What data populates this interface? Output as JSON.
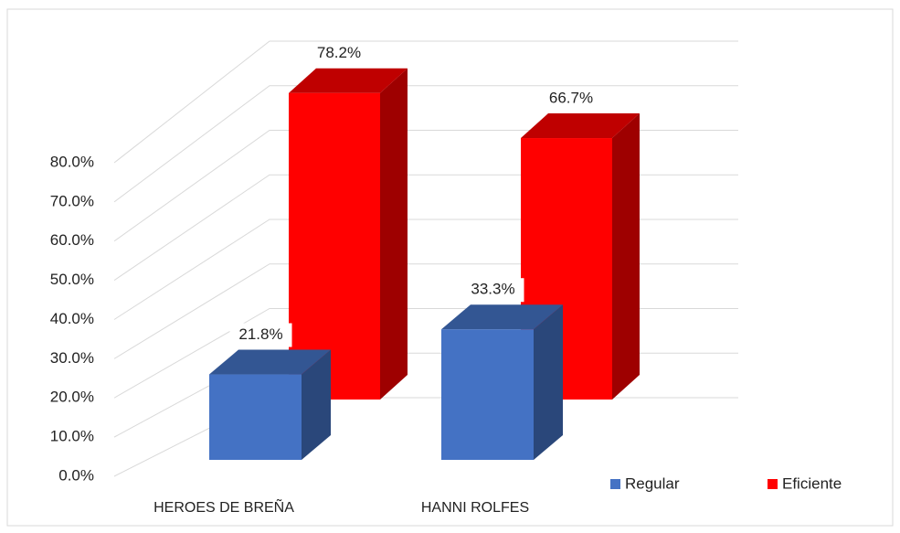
{
  "chart_data": {
    "type": "bar3d",
    "categories": [
      "HEROES DE BREÑA",
      "HANNI ROLFES"
    ],
    "series": [
      {
        "name": "Regular",
        "color": "#4472c4",
        "values": [
          21.8,
          33.3
        ],
        "value_labels": [
          "21.8%",
          "33.3%"
        ]
      },
      {
        "name": "Eficiente",
        "color": "#ff0000",
        "values": [
          78.2,
          66.7
        ],
        "value_labels": [
          "78.2%",
          "66.7%"
        ]
      }
    ],
    "ylim": [
      0,
      80
    ],
    "yticks": [
      {
        "value": 0,
        "label": "0.0%"
      },
      {
        "value": 10,
        "label": "10.0%"
      },
      {
        "value": 20,
        "label": "20.0%"
      },
      {
        "value": 30,
        "label": "30.0%"
      },
      {
        "value": 40,
        "label": "40.0%"
      },
      {
        "value": 50,
        "label": "50.0%"
      },
      {
        "value": 60,
        "label": "60.0%"
      },
      {
        "value": 70,
        "label": "70.0%"
      },
      {
        "value": 80,
        "label": "80.0%"
      }
    ],
    "grid": true,
    "legend": "bottom-right"
  }
}
